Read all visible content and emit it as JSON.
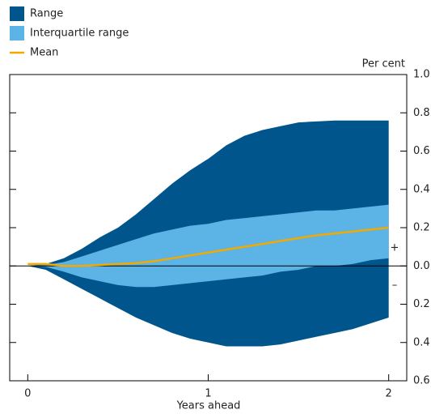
{
  "chart_data": {
    "type": "area",
    "y_axis_label": "Per cent",
    "x_axis_label": "Years ahead",
    "annotations": [
      "+",
      "–"
    ],
    "x": [
      0,
      0.1,
      0.2,
      0.3,
      0.4,
      0.5,
      0.6,
      0.7,
      0.8,
      0.9,
      1.0,
      1.1,
      1.2,
      1.3,
      1.4,
      1.5,
      1.6,
      1.7,
      1.8,
      1.9,
      2.0
    ],
    "series": [
      {
        "name": "Range",
        "type": "band",
        "color": "#00568c",
        "upper": [
          0,
          0.01,
          0.04,
          0.09,
          0.15,
          0.2,
          0.27,
          0.35,
          0.43,
          0.5,
          0.56,
          0.63,
          0.68,
          0.71,
          0.73,
          0.75,
          0.755,
          0.76,
          0.76,
          0.76,
          0.76
        ],
        "lower": [
          0,
          -0.02,
          -0.07,
          -0.12,
          -0.17,
          -0.22,
          -0.27,
          -0.31,
          -0.35,
          -0.38,
          -0.4,
          -0.42,
          -0.42,
          -0.42,
          -0.41,
          -0.39,
          -0.37,
          -0.35,
          -0.33,
          -0.3,
          -0.27
        ]
      },
      {
        "name": "Interquartile range",
        "type": "band",
        "color": "#5bb4e5",
        "upper": [
          0,
          0.005,
          0.02,
          0.05,
          0.08,
          0.11,
          0.14,
          0.17,
          0.19,
          0.21,
          0.22,
          0.24,
          0.25,
          0.26,
          0.27,
          0.28,
          0.29,
          0.29,
          0.3,
          0.31,
          0.32
        ],
        "lower": [
          0,
          -0.005,
          -0.03,
          -0.06,
          -0.08,
          -0.1,
          -0.11,
          -0.11,
          -0.1,
          -0.09,
          -0.08,
          -0.07,
          -0.06,
          -0.05,
          -0.03,
          -0.02,
          0,
          0,
          0.01,
          0.03,
          0.04
        ]
      },
      {
        "name": "Mean",
        "type": "line",
        "color": "#f4a900",
        "values": [
          0.01,
          0.01,
          0,
          0,
          0.005,
          0.01,
          0.015,
          0.025,
          0.04,
          0.055,
          0.07,
          0.085,
          0.1,
          0.115,
          0.13,
          0.145,
          0.16,
          0.17,
          0.18,
          0.19,
          0.2
        ]
      }
    ],
    "xlim": [
      -0.1,
      2.1
    ],
    "xticks": [
      0,
      1,
      2
    ],
    "ylim": [
      -0.6,
      1.0
    ],
    "yticks": [
      {
        "value": 1,
        "label": "1.0"
      },
      0.8,
      0.6,
      0.4,
      0.2,
      {
        "value": 0,
        "label": "0.0"
      },
      {
        "value": -0.2,
        "label": "0.2"
      },
      {
        "value": -0.4,
        "label": "0.4"
      },
      {
        "value": -0.6,
        "label": "0.6"
      }
    ],
    "zero_line": true
  }
}
